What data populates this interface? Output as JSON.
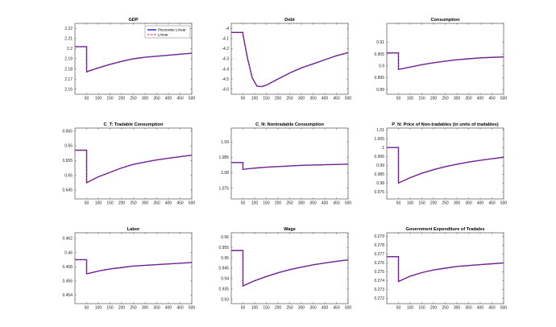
{
  "colors": {
    "piecewise": "#2020d0",
    "linear": "#e0203a",
    "axis": "#333333"
  },
  "chart_data": [
    {
      "type": "line",
      "title": "GDP",
      "xlim": [
        0,
        500
      ],
      "xticks": [
        50,
        100,
        150,
        200,
        250,
        300,
        350,
        400,
        450,
        500
      ],
      "ylim": [
        2.155,
        2.225
      ],
      "yticks": [
        "2.16",
        "2.17",
        "2.18",
        "2.19",
        "2.2",
        "2.21",
        "2.22"
      ],
      "legend": {
        "position": "top-right",
        "entries": [
          "Piecewise Linear",
          "Linear"
        ]
      },
      "series": [
        {
          "name": "Piecewise Linear",
          "x": [
            0,
            50,
            50,
            60,
            100,
            150,
            200,
            250,
            300,
            350,
            400,
            450,
            500
          ],
          "y": [
            2.202,
            2.202,
            2.177,
            2.178,
            2.181,
            2.1845,
            2.1875,
            2.19,
            2.1915,
            2.1925,
            2.1935,
            2.1945,
            2.1955
          ]
        },
        {
          "name": "Linear",
          "x": [
            0,
            50,
            50,
            60,
            100,
            150,
            200,
            250,
            300,
            350,
            400,
            450,
            500
          ],
          "y": [
            2.202,
            2.202,
            2.177,
            2.178,
            2.181,
            2.1845,
            2.1875,
            2.19,
            2.1915,
            2.1925,
            2.1935,
            2.1945,
            2.1955
          ]
        }
      ]
    },
    {
      "type": "line",
      "title": "Debt",
      "xlim": [
        0,
        500
      ],
      "xticks": [
        50,
        100,
        150,
        200,
        250,
        300,
        350,
        400,
        450,
        500
      ],
      "ylim": [
        -4.65,
        -3.95
      ],
      "yticks": [
        "-4",
        "-4.1",
        "-4.2",
        "-4.3",
        "-4.4",
        "-4.5",
        "-4.6"
      ],
      "series": [
        {
          "name": "Piecewise Linear",
          "x": [
            0,
            50,
            50,
            70,
            90,
            110,
            130,
            150,
            200,
            250,
            300,
            350,
            400,
            450,
            500
          ],
          "y": [
            -4.04,
            -4.04,
            -4.06,
            -4.3,
            -4.49,
            -4.57,
            -4.575,
            -4.56,
            -4.5,
            -4.44,
            -4.39,
            -4.35,
            -4.31,
            -4.27,
            -4.24
          ]
        },
        {
          "name": "Linear",
          "x": [
            0,
            50,
            50,
            70,
            90,
            110,
            130,
            150,
            200,
            250,
            300,
            350,
            400,
            450,
            500
          ],
          "y": [
            -4.04,
            -4.04,
            -4.06,
            -4.3,
            -4.49,
            -4.57,
            -4.575,
            -4.56,
            -4.5,
            -4.44,
            -4.39,
            -4.35,
            -4.31,
            -4.27,
            -4.24
          ]
        }
      ]
    },
    {
      "type": "line",
      "title": "Consumption",
      "xlim": [
        0,
        500
      ],
      "xticks": [
        50,
        100,
        150,
        200,
        250,
        300,
        350,
        400,
        450,
        500
      ],
      "ylim": [
        0.888,
        0.918
      ],
      "yticks": [
        "0.89",
        "0.895",
        "0.9",
        "0.905",
        "0.91"
      ],
      "series": [
        {
          "name": "Piecewise Linear",
          "x": [
            0,
            50,
            50,
            100,
            150,
            200,
            250,
            300,
            350,
            400,
            450,
            500
          ],
          "y": [
            0.9055,
            0.9055,
            0.8985,
            0.8995,
            0.9005,
            0.9013,
            0.902,
            0.9026,
            0.903,
            0.9034,
            0.9036,
            0.9038
          ]
        },
        {
          "name": "Linear",
          "x": [
            0,
            50,
            50,
            100,
            150,
            200,
            250,
            300,
            350,
            400,
            450,
            500
          ],
          "y": [
            0.9055,
            0.9055,
            0.8985,
            0.8995,
            0.9005,
            0.9013,
            0.902,
            0.9026,
            0.903,
            0.9034,
            0.9036,
            0.9038
          ]
        }
      ]
    },
    {
      "type": "line",
      "title": "C_T: Tradable Consumption",
      "xlim": [
        0,
        500
      ],
      "xticks": [
        50,
        100,
        150,
        200,
        250,
        300,
        350,
        400,
        450,
        500
      ],
      "ylim": [
        0.842,
        0.666
      ],
      "yticks": [
        "0.665",
        "0.66",
        "0.655",
        "0.65",
        "0.645"
      ],
      "ylim_order": "ascending",
      "series": [
        {
          "name": "Piecewise Linear",
          "x": [
            0,
            50,
            50,
            100,
            150,
            200,
            250,
            300,
            350,
            400,
            450,
            500
          ],
          "y": [
            0.6585,
            0.6585,
            0.6475,
            0.6495,
            0.651,
            0.6525,
            0.6537,
            0.6545,
            0.6552,
            0.6558,
            0.6563,
            0.6568
          ]
        },
        {
          "name": "Linear",
          "x": [
            0,
            50,
            50,
            100,
            150,
            200,
            250,
            300,
            350,
            400,
            450,
            500
          ],
          "y": [
            0.6585,
            0.6585,
            0.6475,
            0.6495,
            0.651,
            0.6525,
            0.6537,
            0.6545,
            0.6552,
            0.6558,
            0.6563,
            0.6568
          ]
        }
      ]
    },
    {
      "type": "line",
      "title": "C_N: Nontradable Consumption",
      "xlim": [
        0,
        500
      ],
      "xticks": [
        50,
        100,
        150,
        200,
        250,
        300,
        350,
        400,
        450,
        500
      ],
      "ylim": [
        1.0715,
        1.0945
      ],
      "yticks": [
        "1.075",
        "1.08",
        "1.085",
        "1.09"
      ],
      "series": [
        {
          "name": "Piecewise Linear",
          "x": [
            0,
            50,
            50,
            100,
            150,
            200,
            250,
            300,
            350,
            400,
            450,
            500
          ],
          "y": [
            1.0833,
            1.0833,
            1.0811,
            1.0815,
            1.0818,
            1.082,
            1.0822,
            1.0824,
            1.0825,
            1.0826,
            1.0827,
            1.0828
          ]
        },
        {
          "name": "Linear",
          "x": [
            0,
            50,
            50,
            100,
            150,
            200,
            250,
            300,
            350,
            400,
            450,
            500
          ],
          "y": [
            1.0833,
            1.0833,
            1.0811,
            1.0815,
            1.0818,
            1.082,
            1.0822,
            1.0824,
            1.0825,
            1.0826,
            1.0827,
            1.0828
          ]
        }
      ]
    },
    {
      "type": "line",
      "title": "P_N: Price of Non-tradables (in units of tradables)",
      "xlim": [
        0,
        500
      ],
      "xticks": [
        50,
        100,
        150,
        200,
        250,
        300,
        350,
        400,
        450,
        500
      ],
      "ylim": [
        0.971,
        1.011
      ],
      "yticks": [
        "0.975",
        "0.98",
        "0.985",
        "0.99",
        "0.995",
        "1",
        "1.005",
        "1.01"
      ],
      "series": [
        {
          "name": "Piecewise Linear",
          "x": [
            0,
            50,
            50,
            100,
            150,
            200,
            250,
            300,
            350,
            400,
            450,
            500
          ],
          "y": [
            1.0,
            1.0,
            0.98,
            0.983,
            0.9855,
            0.9875,
            0.9892,
            0.9906,
            0.9918,
            0.9928,
            0.9937,
            0.9945
          ]
        },
        {
          "name": "Linear",
          "x": [
            0,
            50,
            50,
            100,
            150,
            200,
            250,
            300,
            350,
            400,
            450,
            500
          ],
          "y": [
            1.0,
            1.0,
            0.98,
            0.983,
            0.9855,
            0.9875,
            0.9892,
            0.9906,
            0.9918,
            0.9928,
            0.9937,
            0.9945
          ]
        }
      ]
    },
    {
      "type": "line",
      "title": "Labor",
      "xlim": [
        0,
        500
      ],
      "xticks": [
        50,
        100,
        150,
        200,
        250,
        300,
        350,
        400,
        450,
        500
      ],
      "ylim": [
        0.4528,
        0.4628
      ],
      "yticks": [
        "0.454",
        "0.456",
        "0.458",
        "0.46",
        "0.462"
      ],
      "series": [
        {
          "name": "Piecewise Linear",
          "x": [
            0,
            50,
            50,
            100,
            150,
            200,
            250,
            300,
            350,
            400,
            450,
            500
          ],
          "y": [
            0.459,
            0.459,
            0.457,
            0.4574,
            0.4577,
            0.4579,
            0.4581,
            0.4582,
            0.4583,
            0.4584,
            0.4585,
            0.4586
          ]
        },
        {
          "name": "Linear",
          "x": [
            0,
            50,
            50,
            100,
            150,
            200,
            250,
            300,
            350,
            400,
            450,
            500
          ],
          "y": [
            0.459,
            0.459,
            0.457,
            0.4574,
            0.4577,
            0.4579,
            0.4581,
            0.4582,
            0.4583,
            0.4584,
            0.4585,
            0.4586
          ]
        }
      ]
    },
    {
      "type": "line",
      "title": "Wage",
      "xlim": [
        0,
        500
      ],
      "xticks": [
        50,
        100,
        150,
        200,
        250,
        300,
        350,
        400,
        450,
        500
      ],
      "ylim": [
        0.928,
        0.962
      ],
      "yticks": [
        "0.93",
        "0.935",
        "0.94",
        "0.945",
        "0.95",
        "0.955",
        "0.96"
      ],
      "series": [
        {
          "name": "Piecewise Linear",
          "x": [
            0,
            50,
            50,
            100,
            150,
            200,
            250,
            300,
            350,
            400,
            450,
            500
          ],
          "y": [
            0.9535,
            0.9535,
            0.9365,
            0.939,
            0.941,
            0.9428,
            0.9443,
            0.9455,
            0.9466,
            0.9475,
            0.9483,
            0.949
          ]
        },
        {
          "name": "Linear",
          "x": [
            0,
            50,
            50,
            100,
            150,
            200,
            250,
            300,
            350,
            400,
            450,
            500
          ],
          "y": [
            0.9535,
            0.9535,
            0.9365,
            0.939,
            0.941,
            0.9428,
            0.9443,
            0.9455,
            0.9466,
            0.9475,
            0.9483,
            0.949
          ]
        }
      ]
    },
    {
      "type": "line",
      "title": "Government Expenditure of Tradales",
      "xlim": [
        0,
        500
      ],
      "xticks": [
        50,
        100,
        150,
        200,
        250,
        300,
        350,
        400,
        450,
        500
      ],
      "ylim": [
        0.2714,
        0.2794
      ],
      "yticks": [
        "0.272",
        "0.273",
        "0.274",
        "0.275",
        "0.276",
        "0.277",
        "0.278",
        "0.279"
      ],
      "series": [
        {
          "name": "Piecewise Linear",
          "x": [
            0,
            50,
            50,
            100,
            150,
            200,
            250,
            300,
            350,
            400,
            450,
            500
          ],
          "y": [
            0.2767,
            0.2767,
            0.2739,
            0.2745,
            0.2749,
            0.2752,
            0.2754,
            0.2756,
            0.2757,
            0.2758,
            0.2759,
            0.276
          ]
        },
        {
          "name": "Linear",
          "x": [
            0,
            50,
            50,
            100,
            150,
            200,
            250,
            300,
            350,
            400,
            450,
            500
          ],
          "y": [
            0.2767,
            0.2767,
            0.2739,
            0.2745,
            0.2749,
            0.2752,
            0.2754,
            0.2756,
            0.2757,
            0.2758,
            0.2759,
            0.276
          ]
        }
      ]
    }
  ]
}
